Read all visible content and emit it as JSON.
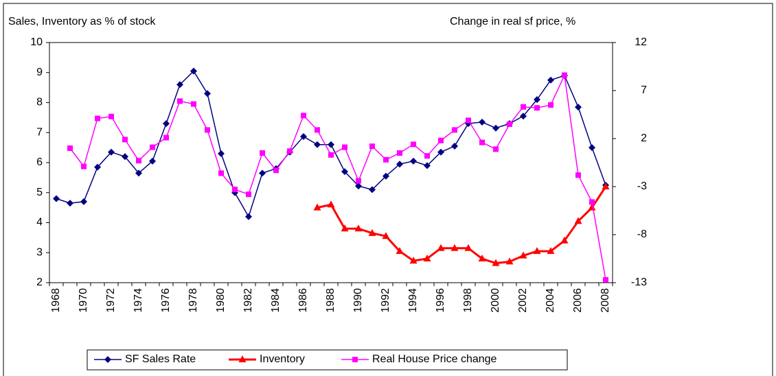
{
  "chart_data": {
    "type": "line",
    "ylabel": "Sales, Inventory as % of stock",
    "y2label": "Change in real sf price, %",
    "categories": [
      "1968",
      null,
      "1970",
      null,
      "1972",
      null,
      "1974",
      null,
      "1976",
      null,
      "1978",
      null,
      "1980",
      null,
      "1982",
      null,
      "1984",
      null,
      "1986",
      null,
      "1988",
      null,
      "1990",
      null,
      "1992",
      null,
      "1994",
      null,
      "1996",
      null,
      "1998",
      null,
      "2000",
      null,
      "2002",
      null,
      "2004",
      null,
      "2006",
      null,
      "2008"
    ],
    "ylim": [
      2,
      10
    ],
    "yticks": [
      2,
      3,
      4,
      5,
      6,
      7,
      8,
      9,
      10
    ],
    "y2lim": [
      -13,
      12
    ],
    "y2ticks": [
      -13,
      -8,
      -3,
      2,
      7,
      12
    ],
    "legend": "bottom",
    "series": [
      {
        "name": "SF Sales Rate",
        "color": "#000080",
        "marker": "diamond",
        "values": [
          4.8,
          4.65,
          4.7,
          5.85,
          6.35,
          6.2,
          5.65,
          6.05,
          7.3,
          8.6,
          9.05,
          8.3,
          6.3,
          5.0,
          4.2,
          5.65,
          5.8,
          6.35,
          6.87,
          6.6,
          6.6,
          5.7,
          5.22,
          5.1,
          5.55,
          5.95,
          6.05,
          5.9,
          6.35,
          6.55,
          7.3,
          7.35,
          7.15,
          7.3,
          7.55,
          8.1,
          8.75,
          8.9,
          7.85,
          6.5,
          5.25
        ]
      },
      {
        "name": "Inventory",
        "color": "#ff0000",
        "marker": "triangle",
        "values": [
          null,
          null,
          null,
          null,
          null,
          null,
          null,
          null,
          null,
          null,
          null,
          null,
          null,
          null,
          null,
          null,
          null,
          null,
          null,
          4.5,
          4.6,
          3.8,
          3.8,
          3.65,
          3.55,
          3.05,
          2.73,
          2.8,
          3.15,
          3.15,
          3.15,
          2.8,
          2.65,
          2.7,
          2.9,
          3.05,
          3.05,
          3.4,
          4.05,
          4.5,
          5.2
        ]
      },
      {
        "name": "Real House Price change",
        "color": "#ff00ff",
        "marker": "square",
        "axis": "y2",
        "values": [
          null,
          1.0,
          -0.9,
          4.1,
          4.3,
          1.9,
          -0.3,
          1.1,
          2.1,
          5.9,
          5.6,
          2.9,
          -1.6,
          -3.3,
          -3.8,
          0.5,
          -1.3,
          0.7,
          4.4,
          2.9,
          0.3,
          1.1,
          -2.4,
          1.2,
          -0.2,
          0.5,
          1.4,
          0.2,
          1.8,
          2.9,
          3.9,
          1.6,
          0.9,
          3.5,
          5.3,
          5.2,
          5.5,
          8.6,
          -1.8,
          -4.6,
          -12.7
        ]
      }
    ]
  }
}
